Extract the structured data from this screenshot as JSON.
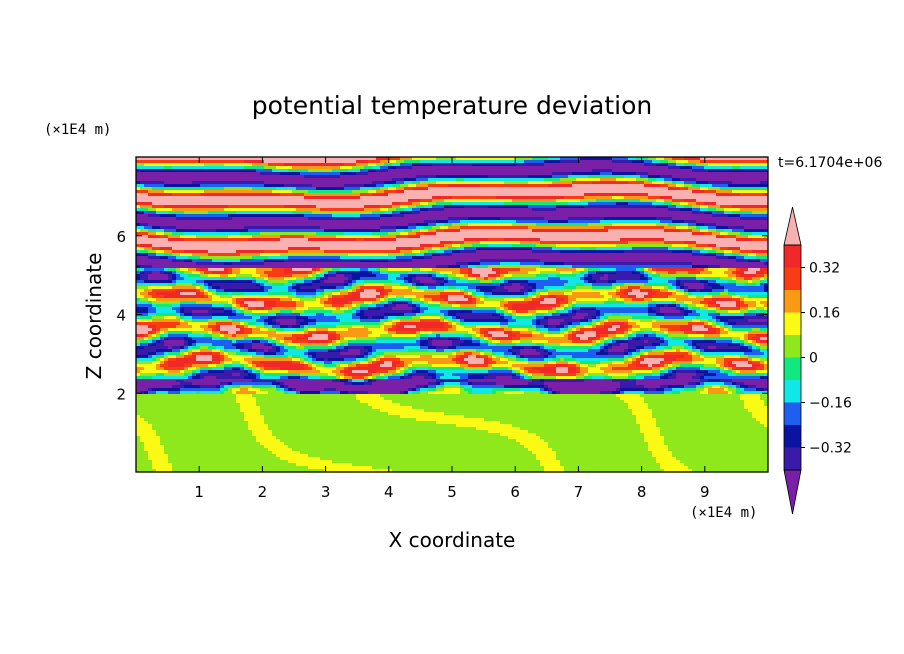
{
  "chart_data": {
    "type": "heatmap",
    "title": "potential temperature deviation",
    "xlabel": "X coordinate",
    "ylabel": "Z coordinate",
    "x_unit": "(×1E4 m)",
    "y_unit": "(×1E4 m)",
    "time_label": "t=6.1704e+06",
    "xlim": [
      0,
      10
    ],
    "ylim": [
      0,
      8
    ],
    "x_ticks": [
      "1",
      "2",
      "3",
      "4",
      "5",
      "6",
      "7",
      "8",
      "9"
    ],
    "y_ticks": [
      "2",
      "4",
      "6"
    ],
    "colorbar": {
      "levels": [
        -0.4,
        -0.32,
        -0.24,
        -0.16,
        -0.08,
        0,
        0.08,
        0.16,
        0.24,
        0.32,
        0.4
      ],
      "labels": [
        "0.32",
        "0.16",
        "0",
        "−0.16",
        "−0.32"
      ],
      "colors": [
        "#7a1fa8",
        "#3a1aa8",
        "#0a14a0",
        "#1e5ef0",
        "#10e8e8",
        "#10e880",
        "#8ee81c",
        "#fafa14",
        "#fa9a14",
        "#fa3c14",
        "#f02828",
        "#f8b0b0"
      ],
      "under_color": "#7a1fa8",
      "over_color": "#f8b0b0",
      "extend": "both"
    }
  }
}
